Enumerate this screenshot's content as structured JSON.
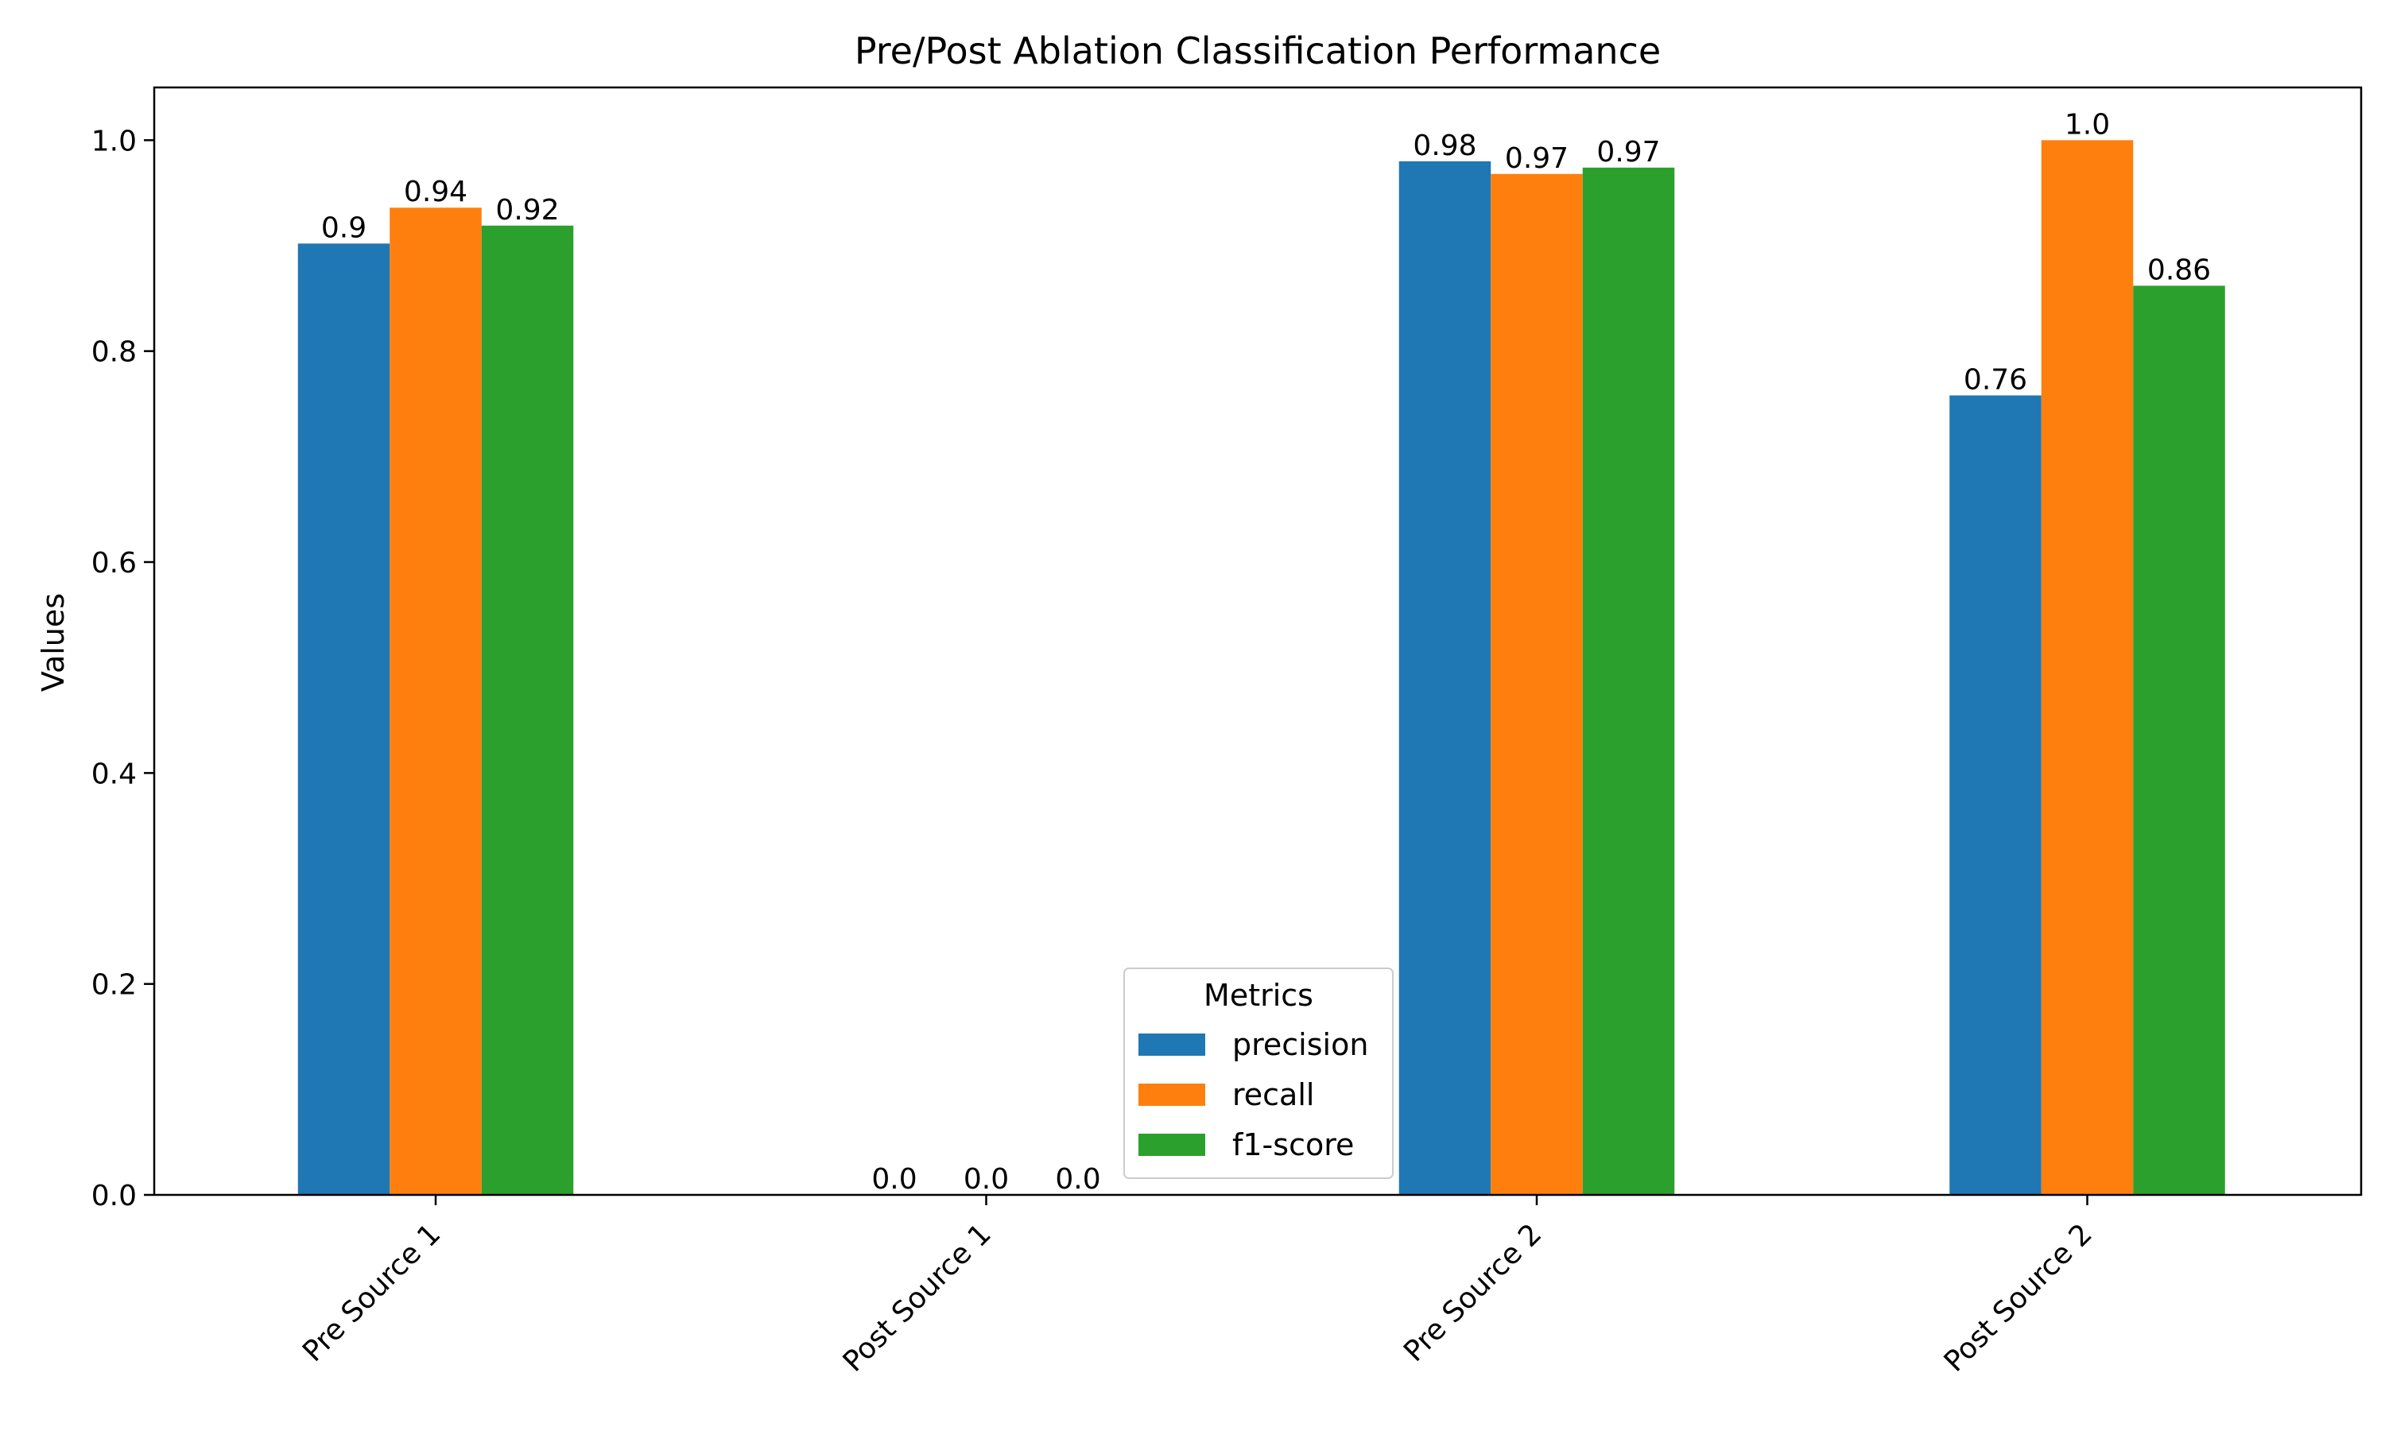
{
  "chart_data": {
    "type": "bar",
    "title": "Pre/Post Ablation Classification Performance",
    "xlabel": "",
    "ylabel": "Values",
    "categories": [
      "Pre Source 1",
      "Post Source 1",
      "Pre Source 2",
      "Post Source 2"
    ],
    "series": [
      {
        "name": "precision",
        "color": "#1f77b4",
        "values": [
          0.902,
          0.0,
          0.98,
          0.758
        ],
        "labels": [
          "0.9",
          "0.0",
          "0.98",
          "0.76"
        ]
      },
      {
        "name": "recall",
        "color": "#ff7f0e",
        "values": [
          0.936,
          0.0,
          0.968,
          1.0
        ],
        "labels": [
          "0.94",
          "0.0",
          "0.97",
          "1.0"
        ]
      },
      {
        "name": "f1-score",
        "color": "#2ca02c",
        "values": [
          0.919,
          0.0,
          0.974,
          0.862
        ],
        "labels": [
          "0.92",
          "0.0",
          "0.97",
          "0.86"
        ]
      }
    ],
    "ylim": [
      0,
      1.05
    ],
    "yticks": [
      "0.0",
      "0.2",
      "0.4",
      "0.6",
      "0.8",
      "1.0"
    ],
    "grid": false,
    "legend": {
      "title": "Metrics",
      "placement": "lower-center"
    }
  }
}
